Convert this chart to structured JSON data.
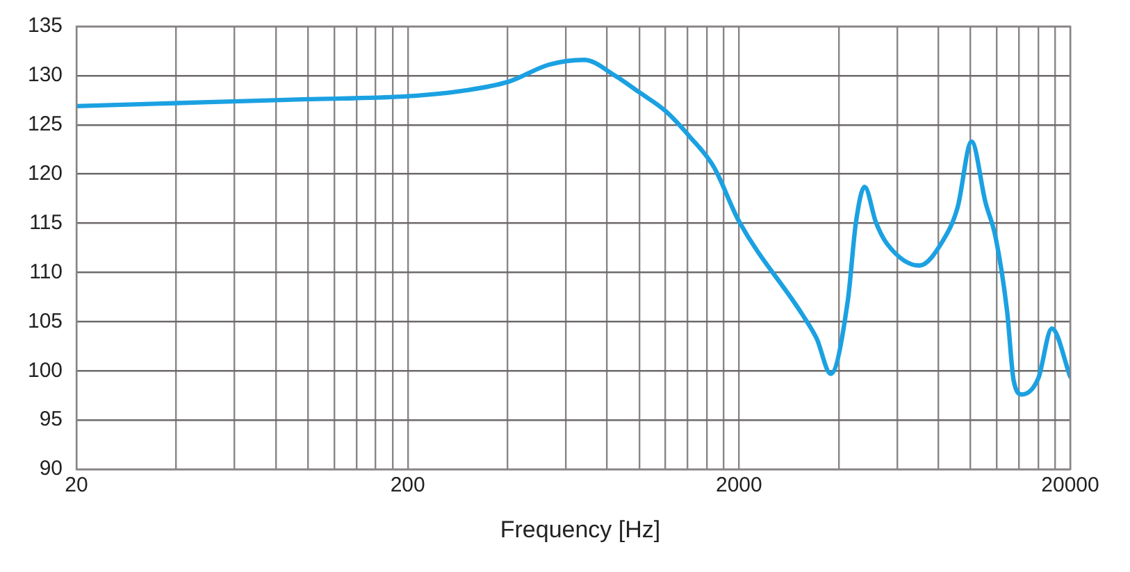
{
  "chart_data": {
    "type": "line",
    "xlabel": "Frequency [Hz]",
    "log": "x",
    "grid": true,
    "legend": false,
    "marker": "none",
    "line_style": "solid",
    "x": [
      20,
      50,
      100,
      200,
      300,
      405,
      533,
      681,
      845,
      1000,
      1200,
      1420,
      1680,
      2000,
      3110,
      3430,
      3785,
      4260,
      4510,
      4790,
      5180,
      5600,
      7000,
      8280,
      9140,
      10070,
      11100,
      11900,
      12900,
      13500,
      14300,
      16000,
      17600,
      20000
    ],
    "series": [
      {
        "color": "#1ba1e2",
        "values": [
          126.9,
          127.3,
          127.6,
          127.9,
          128.5,
          129.4,
          131.1,
          131.6,
          130,
          128.3,
          126.4,
          123.8,
          120.7,
          115.2,
          105.7,
          103.3,
          99.7,
          107.1,
          115.1,
          118.7,
          115.1,
          112.9,
          110.7,
          113.3,
          116.6,
          123.3,
          117.1,
          113.6,
          106,
          99,
          97.6,
          99.2,
          104.3,
          99.4
        ]
      }
    ],
    "xlim": [
      20,
      20000
    ],
    "xticks": [
      20,
      {
        "value": 40,
        "label": null
      },
      {
        "value": 60,
        "label": null
      },
      {
        "value": 80,
        "label": null
      },
      {
        "value": 100,
        "label": null
      },
      {
        "value": 120,
        "label": null
      },
      {
        "value": 140,
        "label": null
      },
      {
        "value": 160,
        "label": null
      },
      {
        "value": 180,
        "label": null
      },
      200,
      {
        "value": 400,
        "label": null
      },
      {
        "value": 600,
        "label": null
      },
      {
        "value": 800,
        "label": null
      },
      {
        "value": 1000,
        "label": null
      },
      {
        "value": 1200,
        "label": null
      },
      {
        "value": 1400,
        "label": null
      },
      {
        "value": 1600,
        "label": null
      },
      {
        "value": 1800,
        "label": null
      },
      2000,
      {
        "value": 4000,
        "label": null
      },
      {
        "value": 6000,
        "label": null
      },
      {
        "value": 8000,
        "label": null
      },
      {
        "value": 10000,
        "label": null
      },
      {
        "value": 12000,
        "label": null
      },
      {
        "value": 14000,
        "label": null
      },
      {
        "value": 16000,
        "label": null
      },
      {
        "value": 18000,
        "label": null
      },
      20000
    ],
    "ylim": [
      90,
      135
    ],
    "yticks": [
      90,
      95,
      100,
      105,
      110,
      115,
      120,
      125,
      130,
      135
    ]
  }
}
